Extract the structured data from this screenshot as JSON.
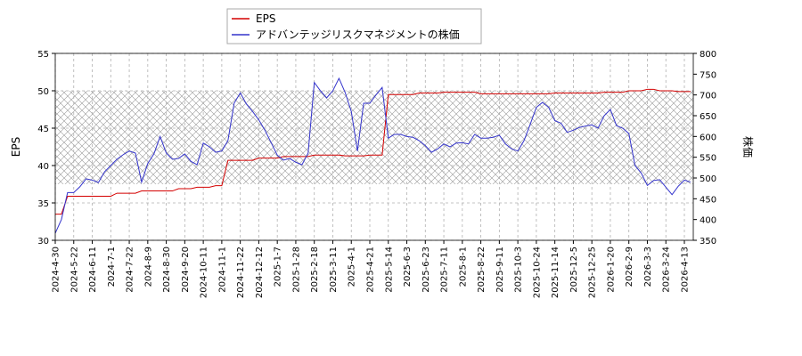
{
  "chart_data": {
    "type": "line",
    "categories": [
      "2024-4-30",
      null,
      null,
      "2024-5-22",
      null,
      null,
      "2024-6-11",
      null,
      null,
      "2024-7-1",
      null,
      null,
      "2024-7-22",
      null,
      null,
      "2024-8-9",
      null,
      null,
      "2024-8-30",
      null,
      null,
      "2024-9-20",
      null,
      null,
      "2024-10-11",
      null,
      null,
      "2024-11-1",
      null,
      null,
      "2024-11-22",
      null,
      null,
      "2024-12-12",
      null,
      null,
      "2025-1-7",
      null,
      null,
      "2025-1-28",
      null,
      null,
      "2025-2-18",
      null,
      null,
      "2025-3-11",
      null,
      null,
      "2025-4-1",
      null,
      null,
      "2025-4-21",
      null,
      null,
      "2025-5-14",
      null,
      null,
      "2025-6-3",
      null,
      null,
      "2025-6-23",
      null,
      null,
      "2025-7-11",
      null,
      null,
      "2025-8-1",
      null,
      null,
      "2025-8-22",
      null,
      null,
      "2025-9-11",
      null,
      null,
      "2025-10-3",
      null,
      null,
      "2025-10-24",
      null,
      null,
      "2025-11-14",
      null,
      null,
      "2025-12-5",
      null,
      null,
      "2025-12-25",
      null,
      null,
      "2026-1-20",
      null,
      null,
      "2026-2-9",
      null,
      null,
      "2026-3-3",
      null,
      null,
      "2026-3-24",
      null,
      null,
      "2026-4-13",
      null
    ],
    "series": [
      {
        "name": "EPS",
        "color": "#d40000",
        "axis": "y",
        "values": [
          33.5,
          33.5,
          35.9,
          35.9,
          35.9,
          35.9,
          35.9,
          35.9,
          35.9,
          35.9,
          36.3,
          36.3,
          36.3,
          36.3,
          36.6,
          36.6,
          36.6,
          36.6,
          36.6,
          36.6,
          36.9,
          36.9,
          36.9,
          37.1,
          37.1,
          37.1,
          37.3,
          37.3,
          40.7,
          40.7,
          40.7,
          40.7,
          40.7,
          41.0,
          41.0,
          41.0,
          41.0,
          41.2,
          41.2,
          41.2,
          41.2,
          41.2,
          41.4,
          41.4,
          41.4,
          41.4,
          41.4,
          41.3,
          41.3,
          41.3,
          41.3,
          41.4,
          41.4,
          41.4,
          49.5,
          49.5,
          49.5,
          49.5,
          49.5,
          49.7,
          49.7,
          49.7,
          49.7,
          49.8,
          49.8,
          49.8,
          49.8,
          49.8,
          49.8,
          49.6,
          49.6,
          49.6,
          49.6,
          49.6,
          49.6,
          49.6,
          49.6,
          49.6,
          49.6,
          49.6,
          49.6,
          49.7,
          49.7,
          49.7,
          49.7,
          49.7,
          49.7,
          49.7,
          49.7,
          49.8,
          49.8,
          49.8,
          49.8,
          50.0,
          50.0,
          50.0,
          50.2,
          50.2,
          50.0,
          50.0,
          50.0,
          49.9,
          49.9,
          49.9
        ]
      },
      {
        "name": "アドバンテッジリスクマネジメントの株価",
        "color": "#3333cc",
        "axis": "y2",
        "values": [
          367,
          400,
          465,
          465,
          479,
          498,
          495,
          489,
          515,
          530,
          545,
          556,
          565,
          560,
          490,
          535,
          558,
          600,
          560,
          545,
          547,
          558,
          540,
          532,
          584,
          575,
          562,
          565,
          590,
          680,
          705,
          678,
          660,
          640,
          615,
          585,
          555,
          543,
          547,
          538,
          532,
          560,
          730,
          710,
          693,
          710,
          740,
          706,
          660,
          565,
          680,
          680,
          700,
          718,
          596,
          605,
          605,
          600,
          598,
          590,
          578,
          562,
          570,
          582,
          575,
          584,
          585,
          582,
          605,
          596,
          596,
          598,
          603,
          582,
          570,
          565,
          590,
          629,
          670,
          682,
          670,
          638,
          632,
          610,
          615,
          622,
          625,
          628,
          620,
          650,
          665,
          626,
          620,
          607,
          530,
          512,
          482,
          494,
          496,
          478,
          460,
          480,
          495,
          490
        ]
      }
    ],
    "ylabel": "EPS",
    "y2label": "株価",
    "ylim": [
      30,
      55
    ],
    "yticks": [
      30,
      35,
      40,
      45,
      50,
      55
    ],
    "y2lim": [
      350,
      800
    ],
    "y2ticks": [
      350,
      400,
      450,
      500,
      550,
      600,
      650,
      700,
      750,
      800
    ],
    "shaded_band": [
      37.5,
      50
    ],
    "grid": true,
    "legend": "upper center"
  }
}
